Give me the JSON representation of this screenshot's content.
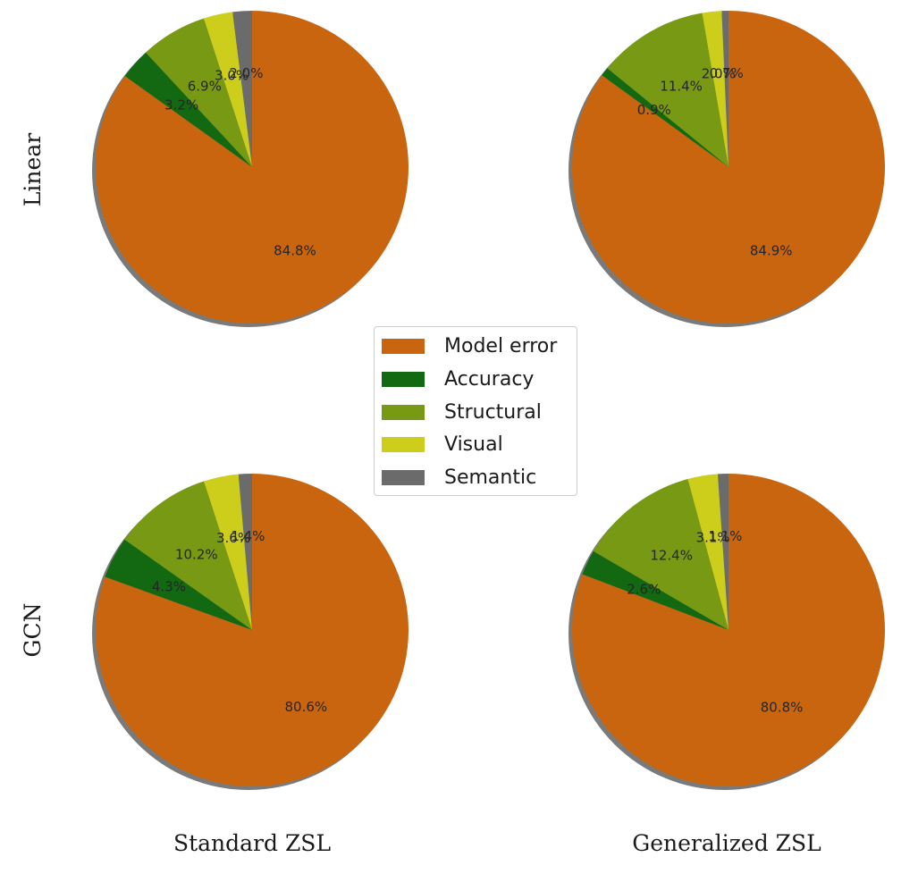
{
  "chart_data": {
    "type": "pie",
    "legend": {
      "placement": "center",
      "entries": [
        "Model error",
        "Accuracy",
        "Structural",
        "Visual",
        "Semantic"
      ]
    },
    "colors": {
      "Model error": "#c8650e",
      "Accuracy": "#136812",
      "Structural": "#779914",
      "Visual": "#cdcd1c",
      "Semantic": "#6b6b6b"
    },
    "row_labels": [
      "Linear",
      "GCN"
    ],
    "column_labels": [
      "Standard ZSL",
      "Generalized ZSL"
    ],
    "pies": [
      {
        "row": "Linear",
        "column": "Standard ZSL",
        "slices": [
          {
            "name": "Model error",
            "value": 84.8,
            "label": "84.8%"
          },
          {
            "name": "Accuracy",
            "value": 3.2,
            "label": "3.2%"
          },
          {
            "name": "Structural",
            "value": 6.9,
            "label": "6.9%"
          },
          {
            "name": "Visual",
            "value": 3.0,
            "label": "3.0%"
          },
          {
            "name": "Semantic",
            "value": 2.0,
            "label": "2.0%"
          }
        ]
      },
      {
        "row": "Linear",
        "column": "Generalized ZSL",
        "slices": [
          {
            "name": "Model error",
            "value": 84.9,
            "label": "84.9%"
          },
          {
            "name": "Accuracy",
            "value": 0.9,
            "label": "0.9%"
          },
          {
            "name": "Structural",
            "value": 11.4,
            "label": "11.4%"
          },
          {
            "name": "Visual",
            "value": 2.0,
            "label": "2.0%"
          },
          {
            "name": "Semantic",
            "value": 0.7,
            "label": "0.7%"
          }
        ]
      },
      {
        "row": "GCN",
        "column": "Standard ZSL",
        "slices": [
          {
            "name": "Model error",
            "value": 80.6,
            "label": "80.6%"
          },
          {
            "name": "Accuracy",
            "value": 4.3,
            "label": "4.3%"
          },
          {
            "name": "Structural",
            "value": 10.2,
            "label": "10.2%"
          },
          {
            "name": "Visual",
            "value": 3.6,
            "label": "3.6%"
          },
          {
            "name": "Semantic",
            "value": 1.4,
            "label": "1.4%"
          }
        ]
      },
      {
        "row": "GCN",
        "column": "Generalized ZSL",
        "slices": [
          {
            "name": "Model error",
            "value": 80.8,
            "label": "80.8%"
          },
          {
            "name": "Accuracy",
            "value": 2.6,
            "label": "2.6%"
          },
          {
            "name": "Structural",
            "value": 12.4,
            "label": "12.4%"
          },
          {
            "name": "Visual",
            "value": 3.1,
            "label": "3.1%"
          },
          {
            "name": "Semantic",
            "value": 1.1,
            "label": "1.1%"
          }
        ]
      }
    ]
  }
}
